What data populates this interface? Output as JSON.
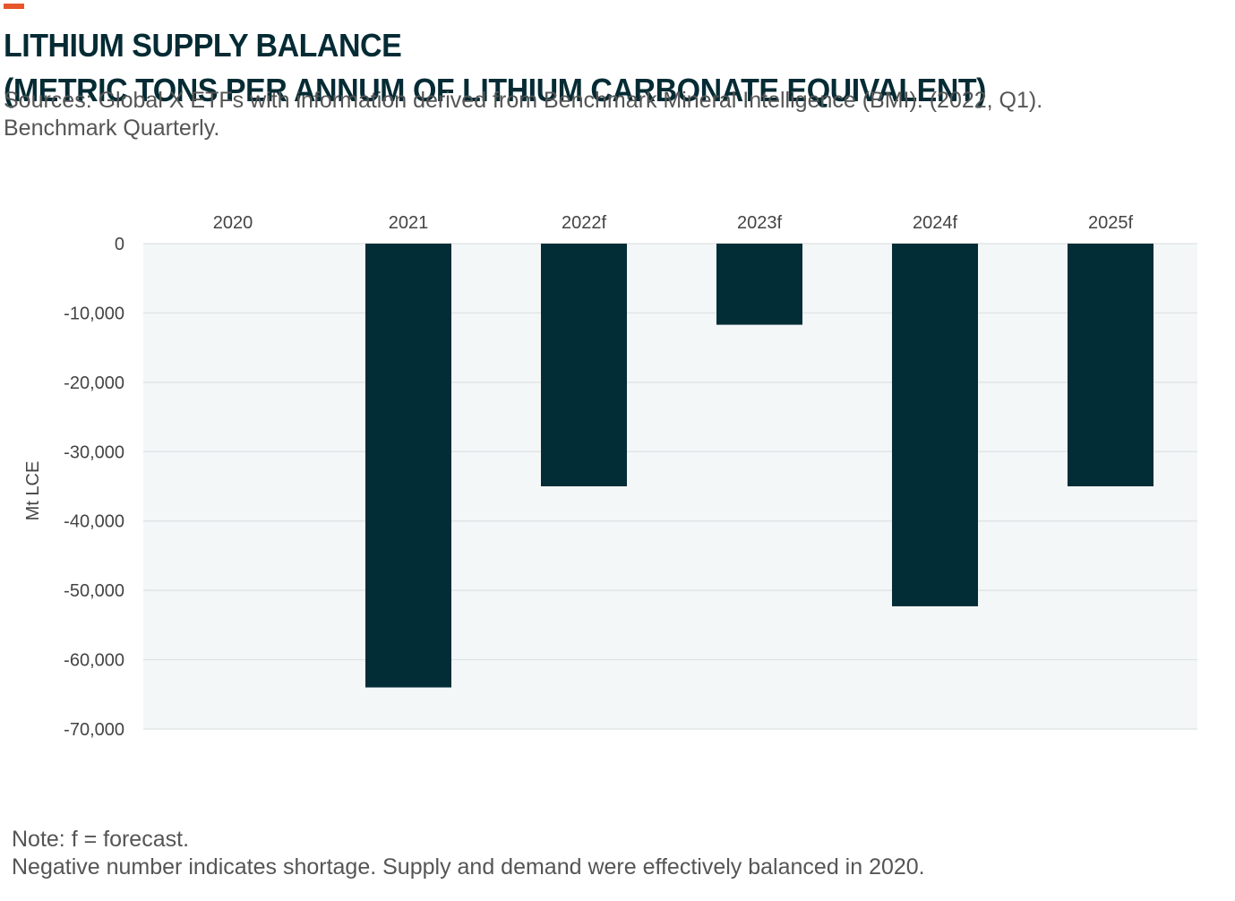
{
  "chart_data": {
    "type": "bar",
    "title": "LITHIUM SUPPLY BALANCE",
    "subtitle": "(METRIC TONS PER ANNUM OF LITHIUM CARBONATE EQUIVALENT)",
    "source_lines": [
      "Sources: Global X ETFs with information derived from Benchmark Mineral Intelligence (BMI). (2022, Q1).",
      "Benchmark Quarterly."
    ],
    "categories": [
      "2020",
      "2021",
      "2022f",
      "2023f",
      "2024f",
      "2025f"
    ],
    "values": [
      0,
      -64000,
      -35000,
      -11700,
      -52300,
      -35000
    ],
    "xlabel": "",
    "ylabel": "Mt LCE",
    "ylim": [
      -70000,
      0
    ],
    "yticks": [
      0,
      -10000,
      -20000,
      -30000,
      -40000,
      -50000,
      -60000,
      -70000
    ],
    "ytick_labels": [
      "0",
      "-10,000",
      "-20,000",
      "-30,000",
      "-40,000",
      "-50,000",
      "-60,000",
      "-70,000"
    ],
    "x_axis_position": "top",
    "grid": true,
    "legend": "none",
    "notes": [
      "Note: f = forecast.",
      "Negative number indicates shortage. Supply and demand were effectively balanced in 2020."
    ]
  },
  "colors": {
    "bar": "#032d36",
    "plot_background": "#f3f7f7",
    "gridline": "#dde2e3",
    "accent": "#e8552a",
    "title": "#052b34"
  }
}
